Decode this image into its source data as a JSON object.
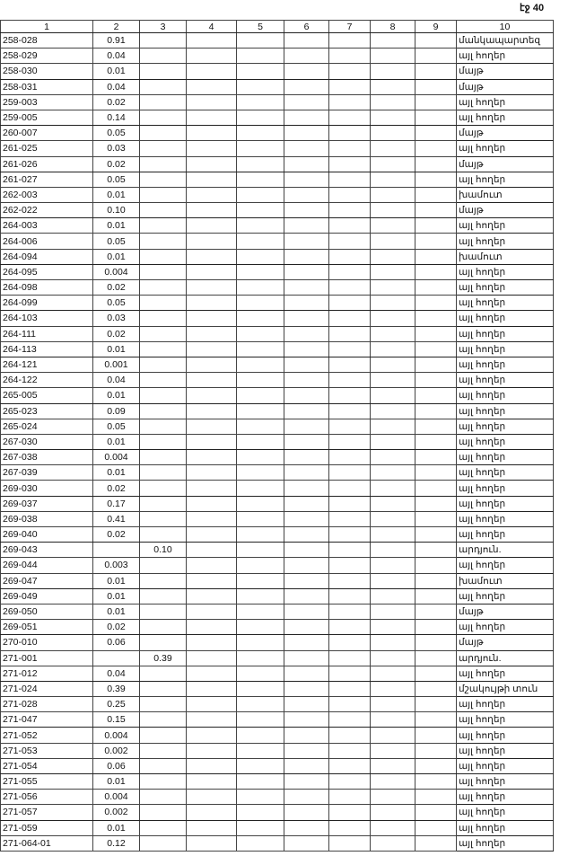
{
  "page_label": "էջ 40",
  "columns": [
    "1",
    "2",
    "3",
    "4",
    "5",
    "6",
    "7",
    "8",
    "9",
    "10"
  ],
  "rows": [
    [
      "258-028",
      "0.91",
      "",
      "մանկապարտեզ"
    ],
    [
      "258-029",
      "0.04",
      "",
      "այլ հողեր"
    ],
    [
      "258-030",
      "0.01",
      "",
      "մայթ"
    ],
    [
      "258-031",
      "0.04",
      "",
      "մայթ"
    ],
    [
      "259-003",
      "0.02",
      "",
      "այլ հողեր"
    ],
    [
      "259-005",
      "0.14",
      "",
      "այլ հողեր"
    ],
    [
      "260-007",
      "0.05",
      "",
      "մայթ"
    ],
    [
      "261-025",
      "0.03",
      "",
      "այլ հողեր"
    ],
    [
      "261-026",
      "0.02",
      "",
      "մայթ"
    ],
    [
      "261-027",
      "0.05",
      "",
      "այլ հողեր"
    ],
    [
      "262-003",
      "0.01",
      "",
      "խամուտ"
    ],
    [
      "262-022",
      "0.10",
      "",
      "մայթ"
    ],
    [
      "264-003",
      "0.01",
      "",
      "այլ հողեր"
    ],
    [
      "264-006",
      "0.05",
      "",
      "այլ հողեր"
    ],
    [
      "264-094",
      "0.01",
      "",
      "խամուտ"
    ],
    [
      "264-095",
      "0.004",
      "",
      "այլ հողեր"
    ],
    [
      "264-098",
      "0.02",
      "",
      "այլ հողեր"
    ],
    [
      "264-099",
      "0.05",
      "",
      "այլ հողեր"
    ],
    [
      "264-103",
      "0.03",
      "",
      "այլ հողեր"
    ],
    [
      "264-111",
      "0.02",
      "",
      "այլ հողեր"
    ],
    [
      "264-113",
      "0.01",
      "",
      "այլ հողեր"
    ],
    [
      "264-121",
      "0.001",
      "",
      "այլ հողեր"
    ],
    [
      "264-122",
      "0.04",
      "",
      "այլ հողեր"
    ],
    [
      "265-005",
      "0.01",
      "",
      "այլ հողեր"
    ],
    [
      "265-023",
      "0.09",
      "",
      "այլ հողեր"
    ],
    [
      "265-024",
      "0.05",
      "",
      "այլ հողեր"
    ],
    [
      "267-030",
      "0.01",
      "",
      "այլ հողեր"
    ],
    [
      "267-038",
      "0.004",
      "",
      "այլ հողեր"
    ],
    [
      "267-039",
      "0.01",
      "",
      "այլ հողեր"
    ],
    [
      "269-030",
      "0.02",
      "",
      "այլ հողեր"
    ],
    [
      "269-037",
      "0.17",
      "",
      "այլ հողեր"
    ],
    [
      "269-038",
      "0.41",
      "",
      "այլ հողեր"
    ],
    [
      "269-040",
      "0.02",
      "",
      "այլ հողեր"
    ],
    [
      "269-043",
      "",
      "0.10",
      "արդյուն."
    ],
    [
      "269-044",
      "0.003",
      "",
      "այլ հողեր"
    ],
    [
      "269-047",
      "0.01",
      "",
      "խամուտ"
    ],
    [
      "269-049",
      "0.01",
      "",
      "այլ հողեր"
    ],
    [
      "269-050",
      "0.01",
      "",
      "մայթ"
    ],
    [
      "269-051",
      "0.02",
      "",
      "այլ հողեր"
    ],
    [
      "270-010",
      "0.06",
      "",
      "մայթ"
    ],
    [
      "271-001",
      "",
      "0.39",
      "արդյուն."
    ],
    [
      "271-012",
      "0.04",
      "",
      "այլ հողեր"
    ],
    [
      "271-024",
      "0.39",
      "",
      "մշակույթի տուն"
    ],
    [
      "271-028",
      "0.25",
      "",
      "այլ հողեր"
    ],
    [
      "271-047",
      "0.15",
      "",
      "այլ հողեր"
    ],
    [
      "271-052",
      "0.004",
      "",
      "այլ հողեր"
    ],
    [
      "271-053",
      "0.002",
      "",
      "այլ հողեր"
    ],
    [
      "271-054",
      "0.06",
      "",
      "այլ հողեր"
    ],
    [
      "271-055",
      "0.01",
      "",
      "այլ հողեր"
    ],
    [
      "271-056",
      "0.004",
      "",
      "այլ հողեր"
    ],
    [
      "271-057",
      "0.002",
      "",
      "այլ հողեր"
    ],
    [
      "271-059",
      "0.01",
      "",
      "այլ հողեր"
    ],
    [
      "271-064-01",
      "0.12",
      "",
      "այլ հողեր"
    ]
  ]
}
